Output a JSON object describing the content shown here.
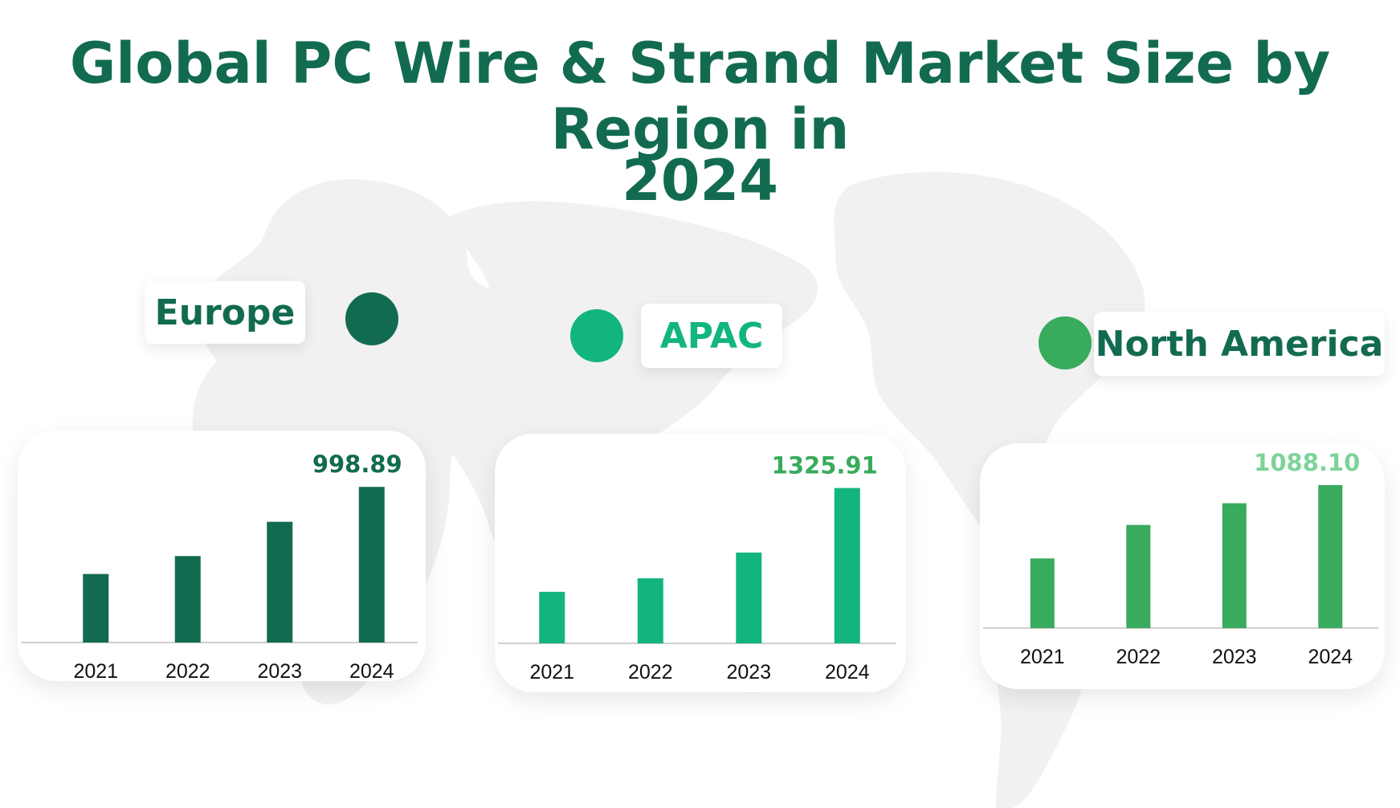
{
  "title_line1": "Global PC Wire & Strand Market Size by Region in",
  "title_line2": "2024",
  "colors": {
    "title": "#126b50",
    "europe": "#126b50",
    "apac": "#12b57f",
    "north_america": "#38ab5c",
    "north_america_label": "#7dd39a",
    "map": "#f1f1f1",
    "axis": "#cfcfcf"
  },
  "regions": [
    {
      "key": "europe",
      "label": "Europe"
    },
    {
      "key": "apac",
      "label": "APAC"
    },
    {
      "key": "north_america",
      "label": "North America"
    }
  ],
  "chart_data": [
    {
      "type": "bar",
      "region": "Europe",
      "categories": [
        "2021",
        "2022",
        "2023",
        "2024"
      ],
      "values": [
        440,
        555,
        775,
        998.89
      ],
      "value_labels": [
        "",
        "",
        "",
        "998.89"
      ],
      "ylim": [
        0,
        1000
      ],
      "grid": false,
      "color": "#126b50"
    },
    {
      "type": "bar",
      "region": "APAC",
      "categories": [
        "2021",
        "2022",
        "2023",
        "2024"
      ],
      "values": [
        440,
        555,
        775,
        1325.91
      ],
      "value_labels": [
        "",
        "",
        "",
        "1325.91"
      ],
      "ylim": [
        0,
        1330
      ],
      "grid": false,
      "color": "#12b57f"
    },
    {
      "type": "bar",
      "region": "North America",
      "categories": [
        "2021",
        "2022",
        "2023",
        "2024"
      ],
      "values": [
        530,
        785,
        950,
        1088.1
      ],
      "value_labels": [
        "",
        "",
        "",
        "1088.10"
      ],
      "ylim": [
        0,
        1100
      ],
      "grid": false,
      "color": "#38ab5c"
    }
  ]
}
